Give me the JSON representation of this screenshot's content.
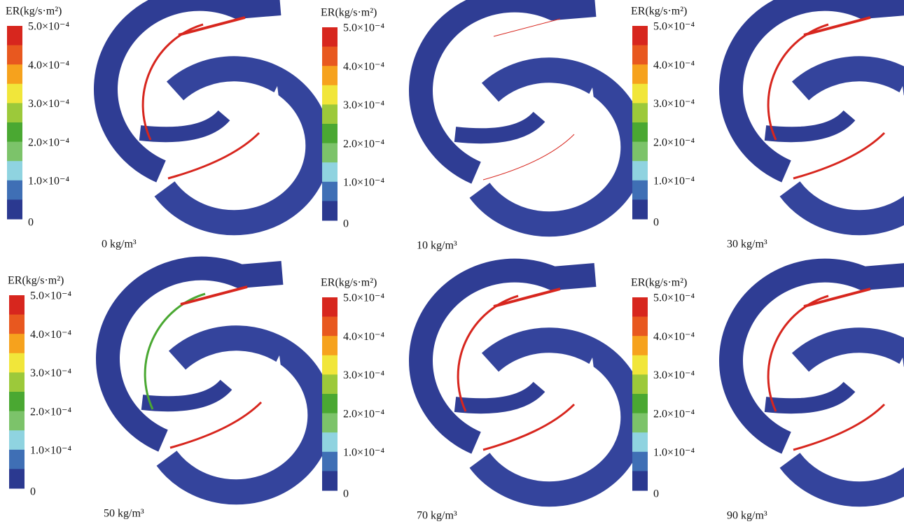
{
  "legend": {
    "title": "ER(kg/s·m²)",
    "labels": [
      "5.0×10⁻⁴",
      "4.0×10⁻⁴",
      "3.0×10⁻⁴",
      "2.0×10⁻⁴",
      "1.0×10⁻⁴",
      "0"
    ],
    "colors": [
      "#d7261e",
      "#e8581f",
      "#f6a21d",
      "#f1e63a",
      "#9cc93a",
      "#4aa832",
      "#7cc36a",
      "#8fd3e0",
      "#3f6fb5",
      "#2b3990"
    ]
  },
  "panels": [
    {
      "caption": "0 kg/m³"
    },
    {
      "caption": "10 kg/m³"
    },
    {
      "caption": "30 kg/m³"
    },
    {
      "caption": "50 kg/m³"
    },
    {
      "caption": "70 kg/m³"
    },
    {
      "caption": "90 kg/m³"
    }
  ]
}
